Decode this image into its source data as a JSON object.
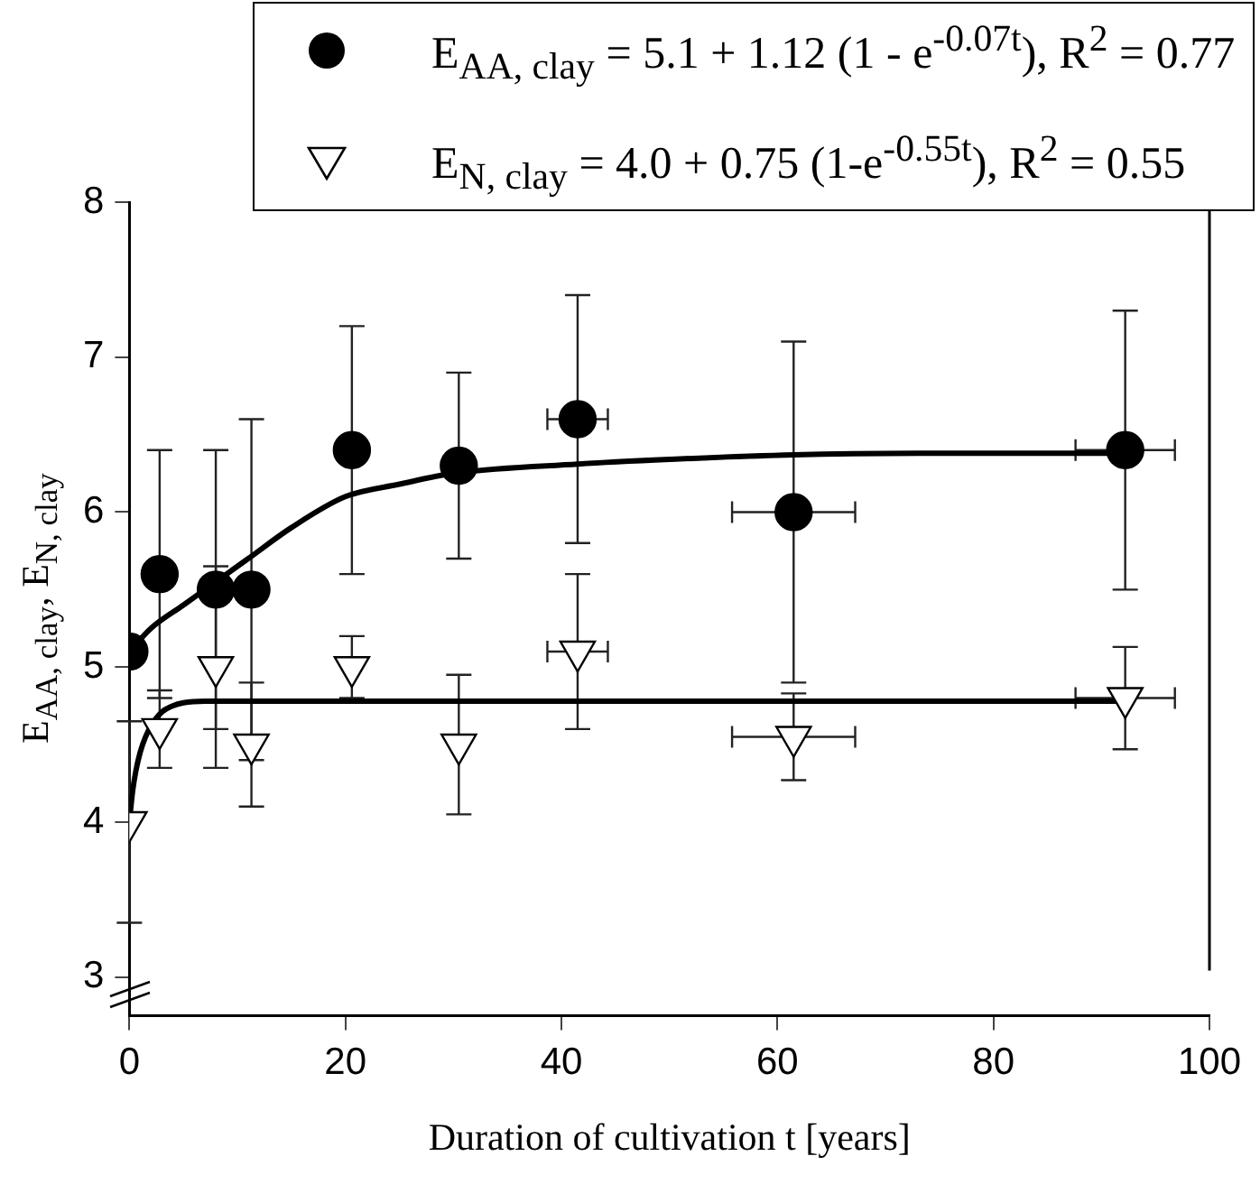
{
  "chart_data": {
    "type": "scatter",
    "xlabel": "Duration of cultivation t [years]",
    "ylabel": "E$_{AA, clay}$, E$_{N, clay}$",
    "xlim": [
      0,
      100
    ],
    "xticks": [
      0,
      20,
      40,
      60,
      80,
      100
    ],
    "ylim": [
      2.75,
      8
    ],
    "yticks": [
      3,
      4,
      5,
      6,
      7,
      8
    ],
    "legend": "top right",
    "series": [
      {
        "name": "E$_{AA, clay}$ = 5.1 + 1.12 (1 - e$^{-0.07t}$), R$^{2}$ = 0.77",
        "marker": "circle",
        "color": "#000000",
        "x": [
          0,
          2.8,
          8,
          11.3,
          20.6,
          30.5,
          41.5,
          61.5,
          92.2
        ],
        "values": [
          5.1,
          5.6,
          5.5,
          5.5,
          6.4,
          6.3,
          6.6,
          6.0,
          6.4
        ],
        "errors": [
          null,
          0.8,
          0.9,
          1.1,
          0.8,
          0.6,
          0.8,
          1.1,
          0.9
        ],
        "xerrors": [
          null,
          null,
          null,
          null,
          null,
          null,
          2.8,
          5.7,
          4.6
        ]
      },
      {
        "name": "E$_{N, clay}$ = 4.0 + 0.75 (1-e$^{-0.55t}$), R$^{2}$  = 0.55",
        "marker": "triangle",
        "color": "#000000",
        "x": [
          0,
          2.8,
          8,
          11.3,
          20.6,
          30.5,
          41.5,
          61.5,
          92.2
        ],
        "values": [
          4.0,
          4.6,
          5.0,
          4.5,
          5.0,
          4.5,
          5.1,
          4.55,
          4.8
        ],
        "errors": [
          0.65,
          0.25,
          0.65,
          0.4,
          0.2,
          0.45,
          0.5,
          0.28,
          0.33
        ],
        "xerrors": [
          null,
          null,
          null,
          null,
          null,
          null,
          2.8,
          5.7,
          4.6
        ]
      },
      {
        "type": "line",
        "marker": "none",
        "color": "#000000",
        "x": [
          0,
          2,
          5,
          8,
          11,
          15,
          20,
          25,
          30,
          41.5,
          50,
          61.5,
          75,
          92.2
        ],
        "values": [
          5.1,
          5.25,
          5.4,
          5.55,
          5.7,
          5.9,
          6.1,
          6.18,
          6.25,
          6.31,
          6.34,
          6.37,
          6.38,
          6.38
        ]
      },
      {
        "type": "line",
        "marker": "none",
        "color": "#000000",
        "x": [
          0,
          0.3,
          0.6,
          1,
          1.5,
          2,
          3,
          4,
          5,
          7,
          10,
          92.2
        ],
        "values": [
          4.0,
          4.2,
          4.33,
          4.45,
          4.55,
          4.62,
          4.71,
          4.75,
          4.77,
          4.78,
          4.78,
          4.78
        ]
      }
    ]
  }
}
